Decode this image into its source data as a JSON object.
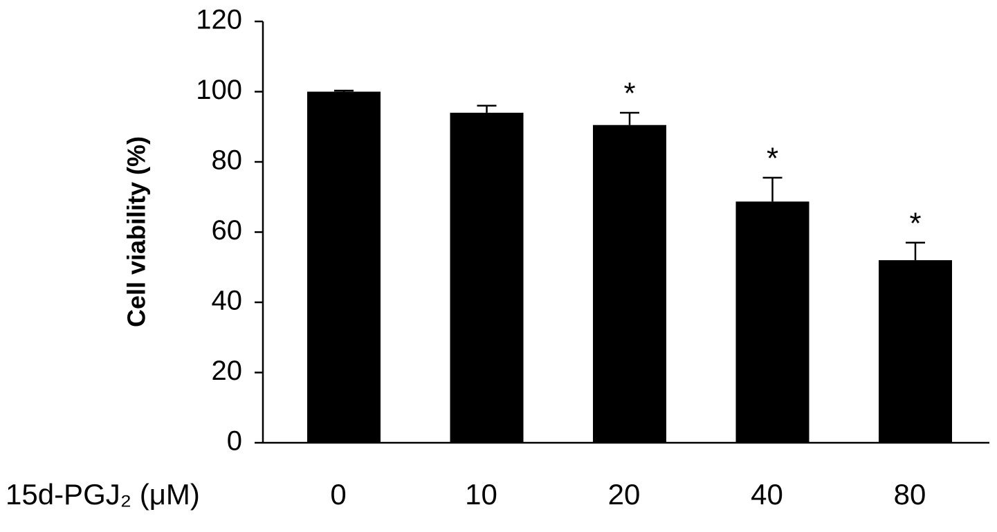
{
  "chart_data": {
    "type": "bar",
    "y_axis_label": "Cell viability (%)",
    "x_axis_label": "15d-PGJ₂ (μM)",
    "categories": [
      "0",
      "10",
      "20",
      "40",
      "80"
    ],
    "values": [
      100,
      94,
      90.5,
      68.7,
      52
    ],
    "errors": [
      0.3,
      2,
      3.5,
      6.8,
      5
    ],
    "annotations": [
      null,
      null,
      "*",
      "*",
      "*"
    ],
    "color": "#000000",
    "ylim": [
      0,
      120
    ],
    "yticks": [
      0,
      20,
      40,
      60,
      80,
      100,
      120
    ],
    "grid": false
  }
}
